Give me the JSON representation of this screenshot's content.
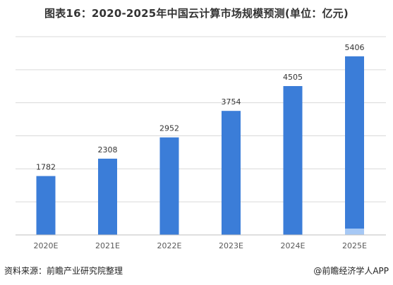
{
  "footer": {
    "source": "资料来源：前瞻产业研究院整理",
    "credit": "@前瞻经济学人APP"
  },
  "colors": {
    "bar": "#3b7dd8",
    "bar_highlight": "#a6c8f5",
    "grid": "#d9d9d9",
    "axis": "#bfbfbf",
    "text": "#333333",
    "axis_text": "#595959"
  },
  "chart_data": {
    "type": "bar",
    "title": "图表16：2020-2025年中国云计算市场规模预测(单位：亿元)",
    "xlabel": "",
    "ylabel": "",
    "categories": [
      "2020E",
      "2021E",
      "2022E",
      "2023E",
      "2024E",
      "2025E"
    ],
    "values": [
      1782,
      2308,
      2952,
      3754,
      4505,
      5406
    ],
    "ylim": [
      0,
      6000
    ],
    "grid": true,
    "y_tick_labels_shown": false,
    "legend": "none"
  }
}
